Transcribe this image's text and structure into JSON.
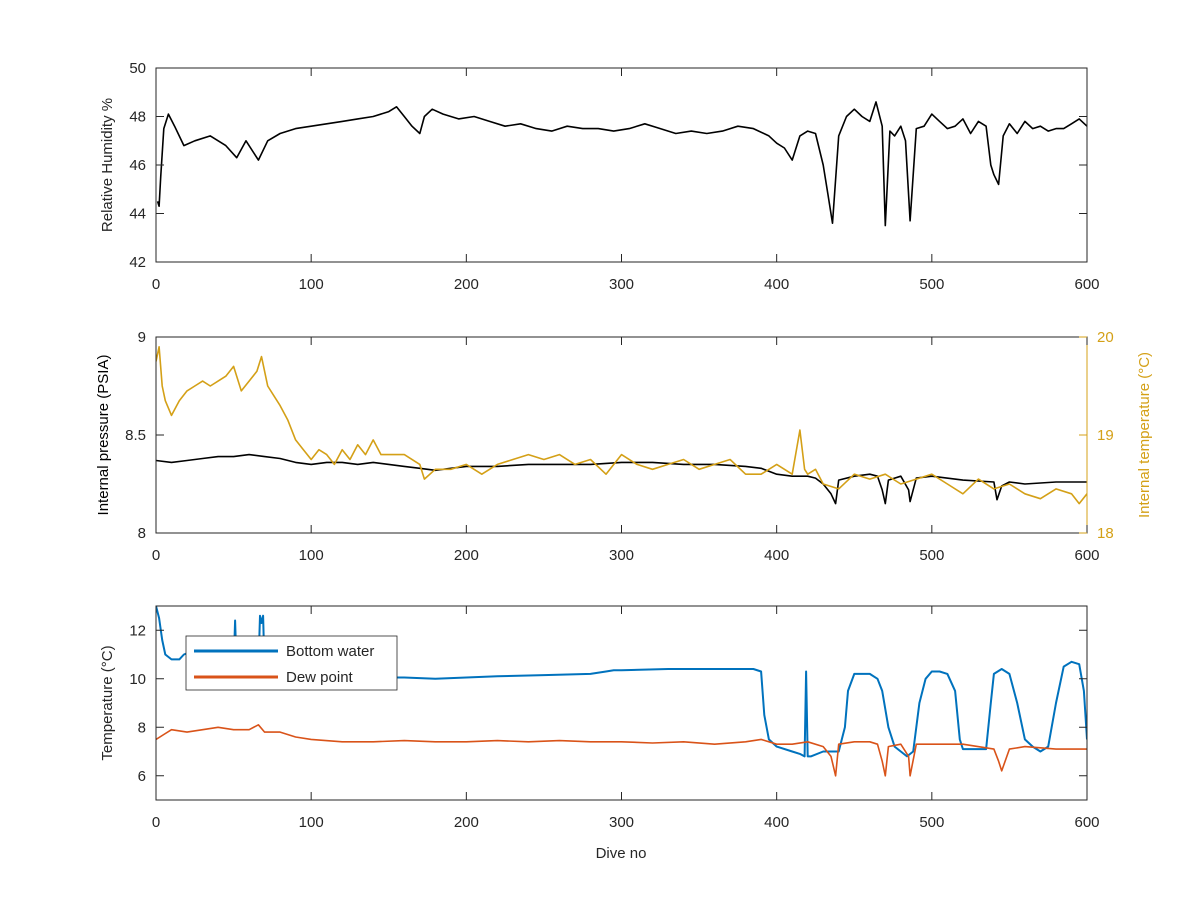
{
  "chart_data": [
    {
      "type": "line",
      "ylabel": "Relative Humidity %",
      "xlim": [
        0,
        600
      ],
      "ylim": [
        42,
        50
      ],
      "x_ticks": [
        0,
        100,
        200,
        300,
        400,
        500,
        600
      ],
      "y_ticks": [
        42,
        44,
        46,
        48,
        50
      ],
      "y_tick_labels": [
        "42",
        "44",
        "46",
        "48",
        "50"
      ],
      "series": [
        {
          "color": "#000000",
          "x": [
            1,
            2,
            3,
            5,
            8,
            12,
            18,
            25,
            35,
            45,
            52,
            58,
            66,
            72,
            80,
            90,
            100,
            110,
            120,
            130,
            140,
            150,
            155,
            160,
            165,
            170,
            173,
            178,
            185,
            195,
            205,
            215,
            225,
            235,
            245,
            255,
            265,
            275,
            285,
            295,
            305,
            315,
            325,
            335,
            345,
            355,
            365,
            375,
            385,
            395,
            400,
            405,
            410,
            415,
            420,
            425,
            430,
            433,
            436,
            440,
            445,
            450,
            455,
            460,
            464,
            468,
            470,
            473,
            476,
            480,
            483,
            486,
            490,
            495,
            500,
            505,
            510,
            515,
            520,
            525,
            530,
            535,
            538,
            540,
            543,
            546,
            550,
            555,
            560,
            565,
            570,
            575,
            580,
            585,
            590,
            595,
            600
          ],
          "y": [
            44.5,
            44.3,
            45.5,
            47.5,
            48.1,
            47.6,
            46.8,
            47.0,
            47.2,
            46.8,
            46.3,
            47.0,
            46.2,
            47.0,
            47.3,
            47.5,
            47.6,
            47.7,
            47.8,
            47.9,
            48.0,
            48.2,
            48.4,
            48.0,
            47.6,
            47.3,
            48.0,
            48.3,
            48.1,
            47.9,
            48.0,
            47.8,
            47.6,
            47.7,
            47.5,
            47.4,
            47.6,
            47.5,
            47.5,
            47.4,
            47.5,
            47.7,
            47.5,
            47.3,
            47.4,
            47.3,
            47.4,
            47.6,
            47.5,
            47.2,
            46.9,
            46.7,
            46.2,
            47.2,
            47.4,
            47.3,
            46.0,
            44.8,
            43.6,
            47.2,
            48.0,
            48.3,
            48.0,
            47.8,
            48.6,
            47.6,
            43.5,
            47.4,
            47.2,
            47.6,
            47.0,
            43.7,
            47.5,
            47.6,
            48.1,
            47.8,
            47.5,
            47.6,
            47.9,
            47.3,
            47.8,
            47.6,
            46.0,
            45.6,
            45.2,
            47.2,
            47.7,
            47.3,
            47.8,
            47.5,
            47.6,
            47.4,
            47.5,
            47.5,
            47.7,
            47.9,
            47.6
          ]
        }
      ]
    },
    {
      "type": "line",
      "ylabel": "Internal pressure (PSIA)",
      "y2label": "Internal temperature (°C)",
      "xlim": [
        0,
        600
      ],
      "ylim": [
        8,
        9
      ],
      "y2lim": [
        18,
        20
      ],
      "x_ticks": [
        0,
        100,
        200,
        300,
        400,
        500,
        600
      ],
      "y_ticks": [
        8,
        8.5,
        9
      ],
      "y_tick_labels": [
        "8",
        "8.5",
        "9"
      ],
      "y2_ticks": [
        18,
        19,
        20
      ],
      "y2_tick_labels": [
        "18",
        "19",
        "20"
      ],
      "series": [
        {
          "axis": "left",
          "color": "#000000",
          "x": [
            0,
            10,
            20,
            30,
            40,
            50,
            60,
            70,
            80,
            90,
            100,
            110,
            120,
            130,
            140,
            150,
            160,
            170,
            180,
            190,
            200,
            220,
            240,
            260,
            280,
            300,
            320,
            340,
            360,
            380,
            390,
            400,
            410,
            420,
            425,
            430,
            435,
            438,
            440,
            450,
            460,
            465,
            468,
            470,
            472,
            480,
            485,
            486,
            490,
            500,
            520,
            540,
            542,
            545,
            550,
            560,
            580,
            600
          ],
          "y": [
            8.37,
            8.36,
            8.37,
            8.38,
            8.39,
            8.39,
            8.4,
            8.39,
            8.38,
            8.36,
            8.35,
            8.36,
            8.36,
            8.35,
            8.36,
            8.35,
            8.34,
            8.33,
            8.32,
            8.33,
            8.34,
            8.34,
            8.35,
            8.35,
            8.35,
            8.36,
            8.36,
            8.35,
            8.35,
            8.34,
            8.33,
            8.3,
            8.29,
            8.29,
            8.28,
            8.25,
            8.2,
            8.15,
            8.27,
            8.29,
            8.3,
            8.29,
            8.22,
            8.15,
            8.27,
            8.29,
            8.22,
            8.16,
            8.28,
            8.29,
            8.27,
            8.26,
            8.17,
            8.24,
            8.26,
            8.25,
            8.26,
            8.26
          ]
        },
        {
          "axis": "right",
          "color": "#D4A017",
          "x": [
            0,
            2,
            4,
            6,
            10,
            15,
            20,
            25,
            30,
            35,
            40,
            45,
            50,
            55,
            60,
            65,
            68,
            72,
            76,
            80,
            85,
            90,
            95,
            100,
            105,
            110,
            115,
            120,
            125,
            130,
            135,
            140,
            145,
            150,
            160,
            170,
            173,
            180,
            190,
            200,
            210,
            220,
            230,
            240,
            250,
            260,
            270,
            280,
            290,
            300,
            310,
            320,
            330,
            340,
            350,
            360,
            370,
            380,
            390,
            400,
            410,
            415,
            418,
            420,
            425,
            430,
            440,
            450,
            460,
            470,
            480,
            490,
            500,
            510,
            520,
            530,
            540,
            550,
            560,
            570,
            580,
            590,
            595,
            600
          ],
          "y": [
            19.75,
            19.9,
            19.5,
            19.35,
            19.2,
            19.35,
            19.45,
            19.5,
            19.55,
            19.5,
            19.55,
            19.6,
            19.7,
            19.45,
            19.55,
            19.65,
            19.8,
            19.5,
            19.4,
            19.3,
            19.15,
            18.95,
            18.85,
            18.75,
            18.85,
            18.8,
            18.7,
            18.85,
            18.75,
            18.9,
            18.8,
            18.95,
            18.8,
            18.8,
            18.8,
            18.7,
            18.55,
            18.65,
            18.65,
            18.7,
            18.6,
            18.7,
            18.75,
            18.8,
            18.75,
            18.8,
            18.7,
            18.75,
            18.6,
            18.8,
            18.7,
            18.65,
            18.7,
            18.75,
            18.65,
            18.7,
            18.75,
            18.6,
            18.6,
            18.7,
            18.6,
            19.05,
            18.65,
            18.6,
            18.65,
            18.5,
            18.45,
            18.6,
            18.55,
            18.6,
            18.5,
            18.55,
            18.6,
            18.5,
            18.4,
            18.55,
            18.45,
            18.5,
            18.4,
            18.35,
            18.45,
            18.4,
            18.3,
            18.4
          ]
        }
      ]
    },
    {
      "type": "line",
      "xlabel": "Dive no",
      "ylabel": "Temperature (°C)",
      "xlim": [
        0,
        600
      ],
      "ylim": [
        5,
        13
      ],
      "x_ticks": [
        0,
        100,
        200,
        300,
        400,
        500,
        600
      ],
      "y_ticks": [
        6,
        8,
        10,
        12
      ],
      "y_tick_labels": [
        "6",
        "8",
        "10",
        "12"
      ],
      "legend": {
        "position": "top-left"
      },
      "series": [
        {
          "name": "Bottom water",
          "color": "#0072BD",
          "x": [
            0,
            2,
            4,
            6,
            10,
            15,
            18,
            22,
            30,
            40,
            50,
            51,
            52,
            53,
            55,
            60,
            66,
            67,
            68,
            69,
            70,
            75,
            80,
            90,
            100,
            120,
            140,
            160,
            180,
            200,
            220,
            250,
            280,
            290,
            295,
            300,
            330,
            360,
            385,
            390,
            392,
            395,
            400,
            410,
            415,
            418,
            419,
            420,
            422,
            430,
            440,
            444,
            446,
            450,
            460,
            465,
            468,
            472,
            476,
            480,
            484,
            488,
            492,
            496,
            500,
            505,
            510,
            515,
            518,
            520,
            525,
            535,
            538,
            540,
            545,
            550,
            555,
            560,
            565,
            570,
            575,
            580,
            585,
            590,
            595,
            598,
            600
          ],
          "y": [
            13.0,
            12.5,
            11.6,
            11.0,
            10.8,
            10.8,
            11.0,
            11.1,
            10.6,
            10.3,
            10.4,
            12.4,
            10.3,
            10.2,
            10.3,
            10.3,
            10.4,
            12.6,
            12.3,
            12.6,
            10.3,
            10.2,
            10.2,
            10.15,
            10.1,
            10.05,
            10.05,
            10.05,
            10.0,
            10.05,
            10.1,
            10.15,
            10.2,
            10.3,
            10.35,
            10.35,
            10.4,
            10.4,
            10.4,
            10.3,
            8.5,
            7.5,
            7.2,
            7.0,
            6.9,
            6.8,
            10.3,
            6.8,
            6.8,
            7.0,
            7.0,
            8.0,
            9.5,
            10.2,
            10.2,
            10.0,
            9.5,
            8.0,
            7.2,
            7.0,
            6.8,
            7.0,
            9.0,
            10.0,
            10.3,
            10.3,
            10.2,
            9.5,
            7.5,
            7.1,
            7.1,
            7.1,
            9.0,
            10.2,
            10.4,
            10.2,
            9.0,
            7.5,
            7.2,
            7.0,
            7.2,
            9.0,
            10.5,
            10.7,
            10.6,
            9.5,
            7.5
          ]
        },
        {
          "name": "Dew point",
          "color": "#D95319",
          "x": [
            0,
            5,
            10,
            20,
            30,
            40,
            50,
            60,
            66,
            70,
            80,
            90,
            100,
            120,
            140,
            160,
            180,
            200,
            220,
            240,
            260,
            280,
            300,
            320,
            340,
            360,
            380,
            390,
            400,
            410,
            420,
            430,
            435,
            438,
            440,
            450,
            460,
            465,
            468,
            470,
            472,
            480,
            485,
            486,
            490,
            500,
            520,
            540,
            543,
            545,
            550,
            560,
            580,
            600
          ],
          "y": [
            7.5,
            7.7,
            7.9,
            7.8,
            7.9,
            8.0,
            7.9,
            7.9,
            8.1,
            7.8,
            7.8,
            7.6,
            7.5,
            7.4,
            7.4,
            7.45,
            7.4,
            7.4,
            7.45,
            7.4,
            7.45,
            7.4,
            7.4,
            7.35,
            7.4,
            7.3,
            7.4,
            7.5,
            7.3,
            7.3,
            7.4,
            7.2,
            6.8,
            6.0,
            7.3,
            7.4,
            7.4,
            7.3,
            6.6,
            6.0,
            7.2,
            7.3,
            6.8,
            6.0,
            7.3,
            7.3,
            7.3,
            7.1,
            6.6,
            6.2,
            7.1,
            7.2,
            7.1,
            7.1
          ]
        }
      ]
    }
  ]
}
